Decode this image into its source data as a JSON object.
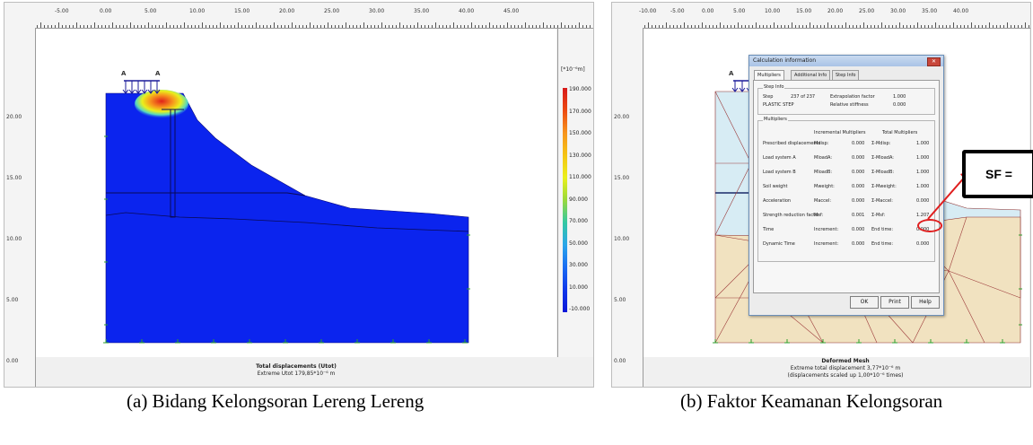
{
  "left_panel": {
    "ruler_top": [
      "-5.00",
      "0.00",
      "5.00",
      "10.00",
      "15.00",
      "20.00",
      "25.00",
      "30.00",
      "35.00",
      "40.00",
      "45.00"
    ],
    "ruler_left": [
      "20.00",
      "15.00",
      "10.00",
      "5.00",
      "0.00"
    ],
    "load_label_a1": "A",
    "load_label_a2": "A",
    "legend_unit": "[*10⁻⁶m]",
    "legend_values": [
      "190.000",
      "170.000",
      "150.000",
      "130.000",
      "110.000",
      "90.000",
      "70.000",
      "50.000",
      "30.000",
      "10.000",
      "-10.000"
    ],
    "legend_colors": [
      "#d71a1a",
      "#ec4a12",
      "#f7941d",
      "#f5c414",
      "#eaf01c",
      "#9ad93b",
      "#33c8a2",
      "#2aa6ea",
      "#1a6cf2",
      "#1038ea",
      "#0b16d8"
    ],
    "footer_title": "Total displacements (Utot)",
    "footer_sub": "Extreme Utot 179,85*10⁻⁶ m",
    "caption": "(a)  Bidang Kelongsoran Lereng Lereng"
  },
  "right_panel": {
    "ruler_top": [
      "-10.00",
      "-5.00",
      "0.00",
      "5.00",
      "10.00",
      "15.00",
      "20.00",
      "25.00",
      "30.00",
      "35.00",
      "40.00"
    ],
    "ruler_left": [
      "20.00",
      "15.00",
      "10.00",
      "5.00",
      "0.00"
    ],
    "load_label": "A",
    "footer_title": "Deformed Mesh",
    "footer_sub1": "Extreme total displacement 3,77*10⁻⁶ m",
    "footer_sub2": "(displacements scaled up 1,00*10⁻⁶ times)",
    "caption": "(b) Faktor Keamanan Kelongsoran",
    "sf_label": "SF ="
  },
  "dialog": {
    "title": "Calculation information",
    "close": "✕",
    "tabs": [
      "Multipliers",
      "Additional Info",
      "Step Info"
    ],
    "step_info": {
      "group": "Step Info",
      "step_label": "Step",
      "step_value": "237 of 237",
      "phase_label": "PLASTIC STEP",
      "extrap_label": "Extrapolation factor",
      "extrap_value": "1.000",
      "stiff_label": "Relative stiffness",
      "stiff_value": "0.000"
    },
    "multipliers": {
      "group": "Multipliers",
      "header_incremental": "Incremental Multipliers",
      "header_total": "Total Multipliers",
      "rows": [
        {
          "name": "Prescribed displacements",
          "inc_label": "Mdisp:",
          "inc": "0.000",
          "tot_label": "Σ-Mdisp:",
          "tot": "1.000"
        },
        {
          "name": "Load system A",
          "inc_label": "MloadA:",
          "inc": "0.000",
          "tot_label": "Σ-MloadA:",
          "tot": "1.000"
        },
        {
          "name": "Load system B",
          "inc_label": "MloadB:",
          "inc": "0.000",
          "tot_label": "Σ-MloadB:",
          "tot": "1.000"
        },
        {
          "name": "Soil weight",
          "inc_label": "Mweight:",
          "inc": "0.000",
          "tot_label": "Σ-Mweight:",
          "tot": "1.000"
        },
        {
          "name": "Acceleration",
          "inc_label": "Maccel:",
          "inc": "0.000",
          "tot_label": "Σ-Maccel:",
          "tot": "0.000"
        },
        {
          "name": "Strength reduction factor",
          "inc_label": "Msf:",
          "inc": "0.001",
          "tot_label": "Σ-Msf:",
          "tot": "1.207"
        },
        {
          "name": "Time",
          "inc_label": "Increment:",
          "inc": "0.000",
          "tot_label": "End time:",
          "tot": "0.000"
        },
        {
          "name": "Dynamic Time",
          "inc_label": "Increment:",
          "inc": "0.000",
          "tot_label": "End time:",
          "tot": "0.000"
        }
      ]
    },
    "buttons": {
      "ok": "OK",
      "print": "Print",
      "help": "Help"
    }
  }
}
